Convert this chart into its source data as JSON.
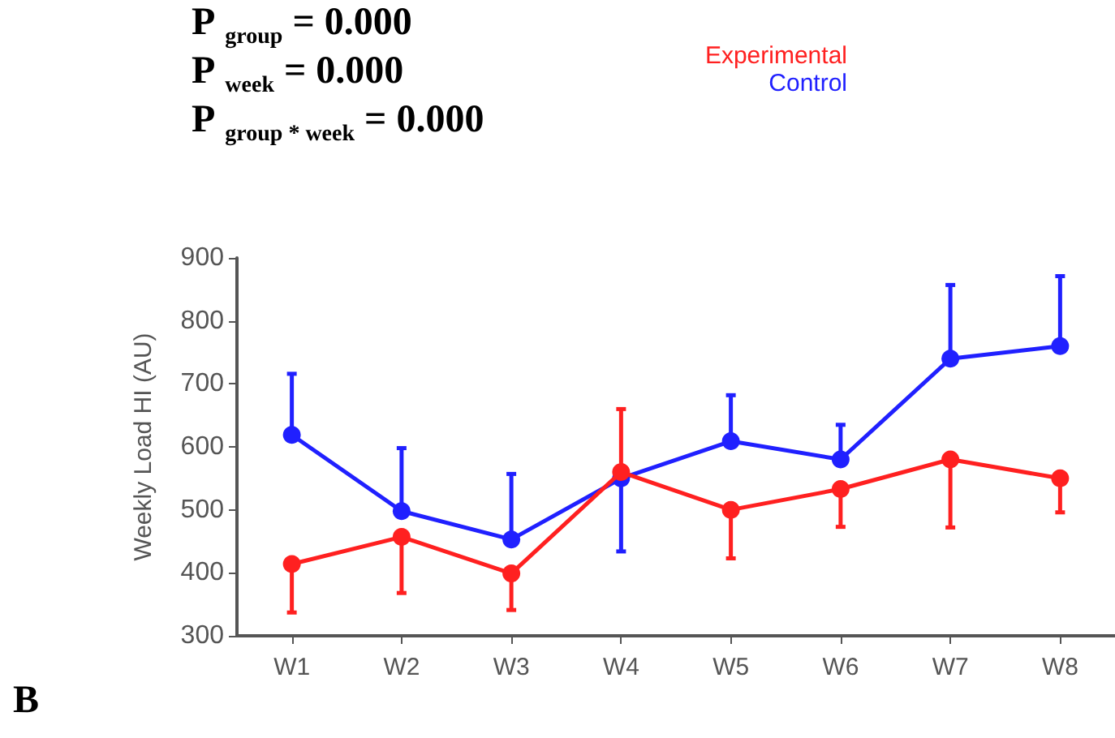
{
  "chart_data": {
    "type": "line",
    "annotations": [
      "P $_{group}$ = 0.000",
      "P $_{week}$ = 0.000",
      "P $_{group * week}$ = 0.000",
      "B"
    ],
    "ylabel": "Weekly Load HI (AU)",
    "categories": [
      "W1",
      "W2",
      "W3",
      "W4",
      "W5",
      "W6",
      "W7",
      "W8"
    ],
    "ylim": [
      300,
      900
    ],
    "yticks": [
      300,
      400,
      500,
      600,
      700,
      800,
      900
    ],
    "grid": false,
    "legend": "top right",
    "marker": "circle",
    "line_style": "solid",
    "series": [
      {
        "name": "Experimental",
        "color": "#ff2020",
        "values": [
          414,
          457,
          399,
          560,
          500,
          533,
          580,
          550
        ],
        "errors": [
          [
            337,
            414
          ],
          [
            368,
            457
          ],
          [
            341,
            399
          ],
          [
            560,
            660
          ],
          [
            423,
            500
          ],
          [
            473,
            533
          ],
          [
            472,
            580
          ],
          [
            496,
            550
          ]
        ]
      },
      {
        "name": "Control",
        "color": "#2020ff",
        "values": [
          619,
          498,
          453,
          550,
          609,
          580,
          740,
          760
        ],
        "errors": [
          [
            619,
            716
          ],
          [
            498,
            598
          ],
          [
            453,
            557
          ],
          [
            434,
            550
          ],
          [
            609,
            682
          ],
          [
            580,
            635
          ],
          [
            740,
            857
          ],
          [
            760,
            871
          ]
        ]
      }
    ]
  }
}
